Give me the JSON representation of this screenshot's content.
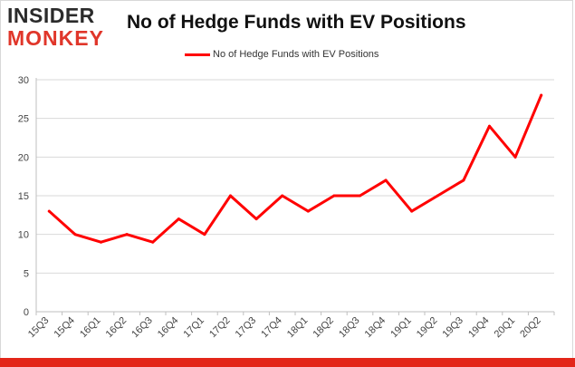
{
  "logo": {
    "line1": "INSIDER",
    "line2": "MONKEY"
  },
  "chart_data": {
    "type": "line",
    "title": "No of Hedge Funds with EV Positions",
    "xlabel": "",
    "ylabel": "",
    "categories": [
      "15Q3",
      "15Q4",
      "16Q1",
      "16Q2",
      "16Q3",
      "16Q4",
      "17Q1",
      "17Q2",
      "17Q3",
      "17Q4",
      "18Q1",
      "18Q2",
      "18Q3",
      "18Q4",
      "19Q1",
      "19Q2",
      "19Q3",
      "19Q4",
      "20Q1",
      "20Q2"
    ],
    "series": [
      {
        "name": "No of Hedge Funds with EV Positions",
        "values": [
          13,
          10,
          9,
          10,
          9,
          12,
          10,
          15,
          12,
          15,
          13,
          15,
          15,
          17,
          13,
          15,
          17,
          24,
          20,
          28
        ]
      }
    ],
    "ylim": [
      0,
      30
    ],
    "yticks": [
      0,
      5,
      10,
      15,
      20,
      25,
      30
    ],
    "grid": true,
    "legend": "top-center",
    "colors": {
      "line": "#ff0000",
      "grid": "#d9d9d9",
      "bottom_bar": "#e32619"
    }
  }
}
